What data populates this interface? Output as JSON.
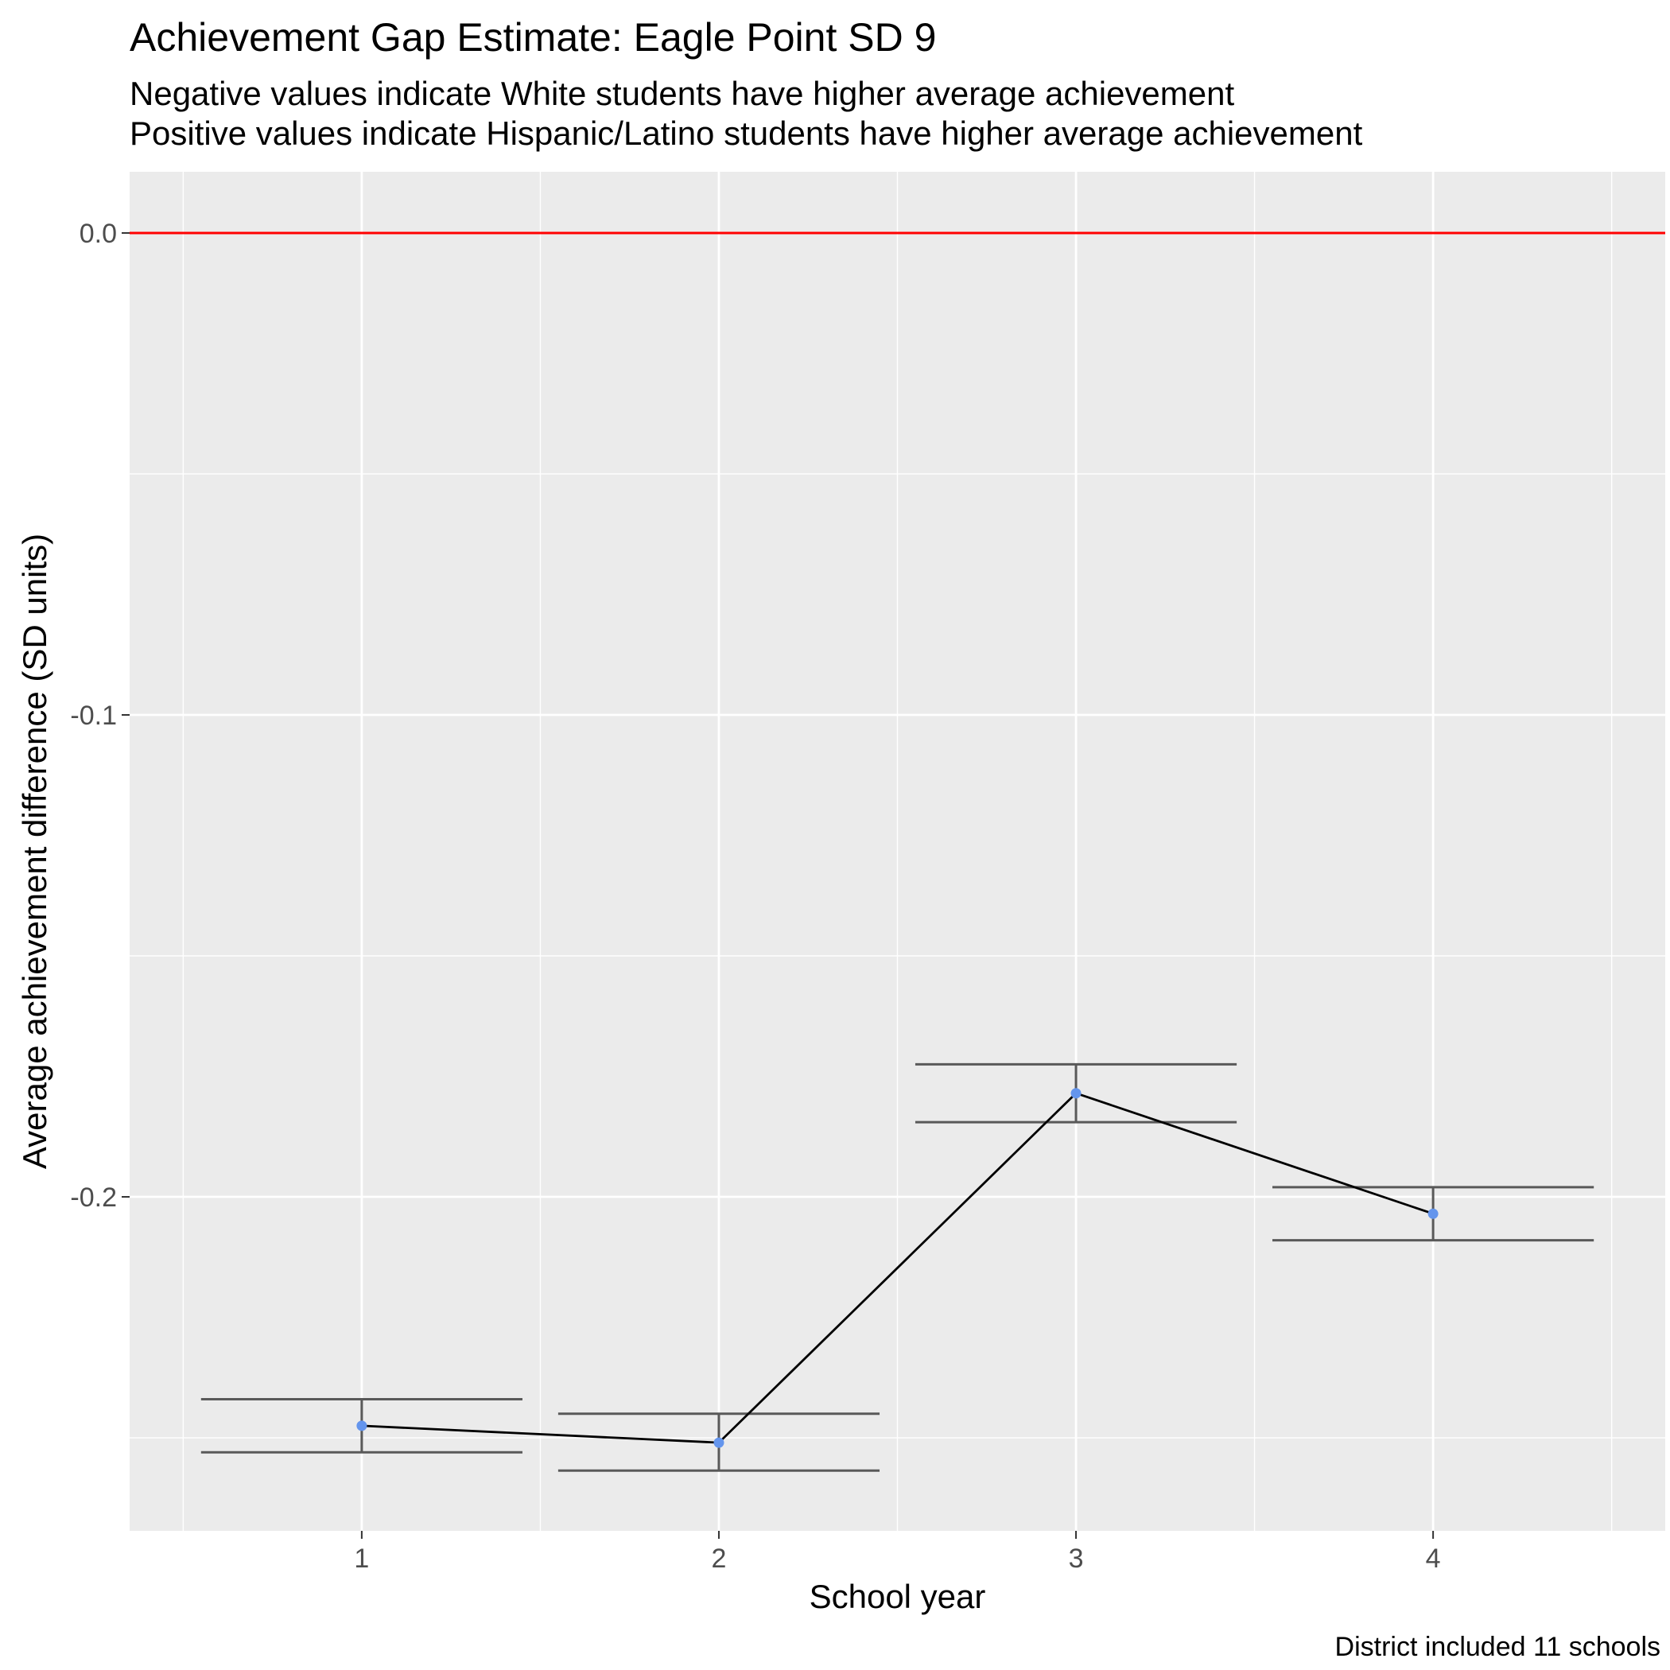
{
  "chart_data": {
    "type": "line",
    "title": "Achievement Gap Estimate: Eagle Point SD 9",
    "subtitle": [
      "Negative values indicate White students have higher average achievement",
      "Positive values indicate Hispanic/Latino students have higher average achievement"
    ],
    "xlabel": "School year",
    "ylabel": "Average achievement difference (SD units)",
    "caption": "District included 11 schools",
    "x": [
      1,
      2,
      3,
      4
    ],
    "x_ticks": [
      "1",
      "2",
      "3",
      "4"
    ],
    "y_ticks": [
      "0.0",
      "-0.1",
      "-0.2"
    ],
    "y_tick_values": [
      0.0,
      -0.1,
      -0.2
    ],
    "xlim": [
      0.35,
      4.65
    ],
    "ylim": [
      -0.2693,
      0.0127
    ],
    "grid": true,
    "series": [
      {
        "values": [
          -0.2475,
          -0.251,
          -0.1785,
          -0.2035
        ],
        "error_lower": [
          -0.253,
          -0.2568,
          -0.1845,
          -0.209
        ],
        "error_upper": [
          -0.242,
          -0.245,
          -0.1725,
          -0.198
        ]
      }
    ],
    "reference_line": {
      "y": 0.0
    },
    "colors": {
      "panel": "#EBEBEB",
      "grid": "#FFFFFF",
      "reference_line": "#FF0000",
      "line": "#000000",
      "point": "#6495ED",
      "errorbar": "#595959"
    }
  }
}
